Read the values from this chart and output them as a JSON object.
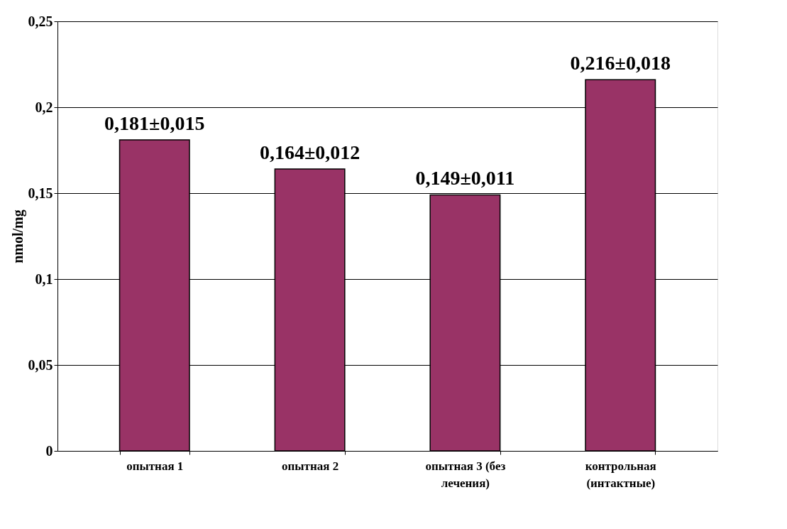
{
  "chart_data": {
    "type": "bar",
    "ylabel": "nmol/mg",
    "categories": [
      "опытная 1",
      "опытная 2",
      "опытная 3 (без лечения)",
      "контрольная (интактные)"
    ],
    "values": [
      0.181,
      0.164,
      0.149,
      0.216
    ],
    "value_labels": [
      "0,181±0,015",
      "0,164±0,012",
      "0,149±0,011",
      "0,216±0,018"
    ],
    "color": "#993366",
    "ylim": [
      0,
      0.25
    ],
    "yticks": [
      0,
      {
        "value": 0.05,
        "label": "0,05"
      },
      {
        "value": 0.1,
        "label": "0,1"
      },
      {
        "value": 0.15,
        "label": "0,15"
      },
      {
        "value": 0.2,
        "label": "0,2"
      },
      {
        "value": 0.25,
        "label": "0,25"
      }
    ],
    "grid": "y"
  }
}
